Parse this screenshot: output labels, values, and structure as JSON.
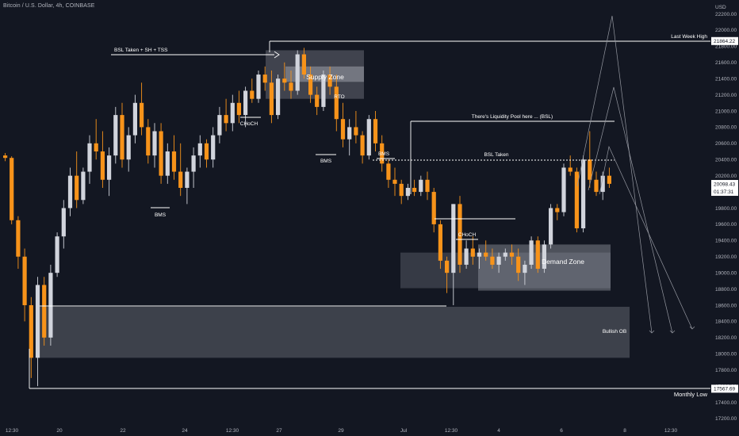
{
  "header": {
    "symbol": "Bitcoin / U.S. Dollar, 4h, COINBASE"
  },
  "chart_data": {
    "type": "candlestick",
    "currency_label": "USD",
    "ylim": [
      17200,
      22400
    ],
    "price_ticks": [
      17200,
      17400,
      17600,
      17800,
      18000,
      18200,
      18400,
      18600,
      18800,
      19000,
      19200,
      19400,
      19600,
      19800,
      20000,
      20200,
      20400,
      20600,
      20800,
      21000,
      21200,
      21400,
      21600,
      21800,
      22000,
      22200
    ],
    "time_ticks": [
      "12:30",
      "20",
      "22",
      "24",
      "12:30",
      "27",
      "29",
      "Jul",
      "12:30",
      "4",
      "6",
      "8",
      "12:30"
    ],
    "colors": {
      "up": "#d1d4dc",
      "down": "#f7931a",
      "background": "#131722",
      "annotation": "#ffffff"
    },
    "price_labels": [
      {
        "value": 21864.22,
        "text": "21864.22"
      },
      {
        "value": 20098.43,
        "text": "20098.43",
        "sub": "01:37:31"
      },
      {
        "value": 17567.69,
        "text": "17567.69"
      }
    ],
    "annotations": {
      "bsl_taken_sh_tss": "BSL Taken + SH + TSS",
      "last_week_high": "Last Week High",
      "supply_zone": "Supply Zone",
      "rto": "RTO",
      "choch_1": "CHoCH",
      "bms_1": "BMS",
      "bms_2": "BMS",
      "bms_3": "BMS",
      "liquidity_pool": "There's Liquidity Pool here ... (BSL)",
      "bsl_taken": "BSL Taken",
      "choch_2": "CHoCH",
      "demand_zone": "Demand Zone",
      "bullish_ob": "Bullish OB",
      "monthly_low": "Monthly Low"
    },
    "zones": [
      {
        "name": "supply-zone",
        "label_key": "supply_zone",
        "from": 21500,
        "to": 21750
      },
      {
        "name": "rto-zone",
        "label_key": "rto",
        "from": 21150,
        "to": 21500
      },
      {
        "name": "demand-zone",
        "label_key": "demand_zone",
        "from": 18780,
        "to": 19350
      },
      {
        "name": "bullish-ob",
        "label_key": "bullish_ob",
        "from": 17950,
        "to": 18580
      }
    ],
    "candles": [
      [
        20450,
        20480,
        20380,
        20420
      ],
      [
        20420,
        20440,
        19600,
        19650
      ],
      [
        19650,
        19700,
        19050,
        19200
      ],
      [
        19200,
        19300,
        18400,
        18600
      ],
      [
        18600,
        18700,
        17700,
        17950
      ],
      [
        17950,
        18950,
        17600,
        18850
      ],
      [
        18850,
        18950,
        18100,
        18200
      ],
      [
        18200,
        19100,
        18100,
        19000
      ],
      [
        19000,
        19500,
        18950,
        19450
      ],
      [
        19450,
        19900,
        19300,
        19800
      ],
      [
        19800,
        20300,
        19700,
        20200
      ],
      [
        20200,
        20500,
        19800,
        19900
      ],
      [
        19900,
        20300,
        19850,
        20250
      ],
      [
        20250,
        20700,
        20100,
        20600
      ],
      [
        20600,
        20900,
        20400,
        20500
      ],
      [
        20500,
        20750,
        20050,
        20150
      ],
      [
        20150,
        20550,
        19950,
        20450
      ],
      [
        20450,
        21050,
        20350,
        20950
      ],
      [
        20950,
        21100,
        20300,
        20400
      ],
      [
        20400,
        20800,
        20250,
        20700
      ],
      [
        20700,
        21200,
        20600,
        21100
      ],
      [
        21100,
        21350,
        20700,
        20800
      ],
      [
        20800,
        20900,
        20350,
        20450
      ],
      [
        20450,
        20850,
        20300,
        20750
      ],
      [
        20750,
        20850,
        20100,
        20200
      ],
      [
        20200,
        20600,
        20100,
        20500
      ],
      [
        20500,
        20700,
        20150,
        20250
      ],
      [
        20250,
        20600,
        19950,
        20050
      ],
      [
        20050,
        20300,
        19850,
        20250
      ],
      [
        20250,
        20550,
        20050,
        20450
      ],
      [
        20450,
        20700,
        20300,
        20600
      ],
      [
        20600,
        20650,
        20300,
        20400
      ],
      [
        20400,
        20800,
        20300,
        20700
      ],
      [
        20700,
        21050,
        20600,
        20950
      ],
      [
        20950,
        21150,
        20750,
        20850
      ],
      [
        20850,
        21200,
        20750,
        21100
      ],
      [
        21100,
        21250,
        20850,
        20950
      ],
      [
        20950,
        21300,
        20800,
        21250
      ],
      [
        21250,
        21400,
        21100,
        21150
      ],
      [
        21150,
        21500,
        21100,
        21450
      ],
      [
        21450,
        21550,
        21250,
        21350
      ],
      [
        21350,
        21500,
        20850,
        20950
      ],
      [
        20950,
        21450,
        20900,
        21400
      ],
      [
        21400,
        21600,
        21250,
        21350
      ],
      [
        21350,
        21500,
        21150,
        21250
      ],
      [
        21250,
        21750,
        21200,
        21700
      ],
      [
        21700,
        21780,
        21400,
        21450
      ],
      [
        21450,
        21550,
        21100,
        21200
      ],
      [
        21200,
        21300,
        20950,
        21050
      ],
      [
        21050,
        21500,
        21000,
        21450
      ],
      [
        21450,
        21550,
        21200,
        21300
      ],
      [
        21300,
        21450,
        20750,
        20900
      ],
      [
        20900,
        21100,
        20550,
        20650
      ],
      [
        20650,
        20900,
        20450,
        20800
      ],
      [
        20800,
        21000,
        20600,
        20700
      ],
      [
        20700,
        20750,
        20350,
        20450
      ],
      [
        20450,
        20950,
        20400,
        20900
      ],
      [
        20900,
        21000,
        20500,
        20600
      ],
      [
        20600,
        20700,
        20250,
        20350
      ],
      [
        20350,
        20400,
        20050,
        20150
      ],
      [
        20150,
        20300,
        19950,
        20100
      ],
      [
        20100,
        20150,
        19850,
        19950
      ],
      [
        19950,
        20100,
        19900,
        20050
      ],
      [
        20050,
        20150,
        19950,
        20000
      ],
      [
        20000,
        20200,
        19950,
        20150
      ],
      [
        20150,
        20250,
        19900,
        20000
      ],
      [
        20000,
        20050,
        19500,
        19600
      ],
      [
        19600,
        19650,
        19050,
        19150
      ],
      [
        19150,
        19200,
        18750,
        19000
      ],
      [
        19000,
        19850,
        18600,
        19850
      ],
      [
        19850,
        19950,
        19000,
        19100
      ],
      [
        19100,
        19400,
        19050,
        19300
      ],
      [
        19300,
        19450,
        19100,
        19200
      ],
      [
        19200,
        19300,
        19050,
        19250
      ],
      [
        19250,
        19400,
        19150,
        19200
      ],
      [
        19200,
        19300,
        19050,
        19100
      ],
      [
        19100,
        19250,
        19000,
        19200
      ],
      [
        19200,
        19300,
        19150,
        19250
      ],
      [
        19250,
        19350,
        19100,
        19200
      ],
      [
        19200,
        19300,
        18900,
        19000
      ],
      [
        19000,
        19150,
        18850,
        19100
      ],
      [
        19100,
        19450,
        19050,
        19400
      ],
      [
        19400,
        19450,
        19000,
        19050
      ],
      [
        19050,
        19400,
        19000,
        19350
      ],
      [
        19350,
        19850,
        19300,
        19800
      ],
      [
        19800,
        19850,
        19650,
        19750
      ],
      [
        19750,
        20350,
        19700,
        20300
      ],
      [
        20300,
        20450,
        20200,
        20250
      ],
      [
        20250,
        20300,
        19500,
        19550
      ],
      [
        19550,
        20450,
        19500,
        20400
      ],
      [
        20400,
        20750,
        20050,
        20150
      ],
      [
        20150,
        20250,
        19950,
        20000
      ],
      [
        20000,
        20250,
        19900,
        20200
      ],
      [
        20200,
        20300,
        20050,
        20100
      ]
    ],
    "x_positions": [
      4,
      9,
      14,
      19,
      24,
      29,
      34,
      39,
      44,
      49,
      54,
      59,
      64,
      69,
      74,
      79,
      84,
      89,
      94,
      99,
      104,
      109,
      114,
      119,
      124,
      129,
      134,
      139,
      144,
      149,
      154,
      159,
      164,
      169,
      174,
      179,
      184,
      189,
      194,
      199,
      204,
      209,
      214,
      219,
      224,
      229,
      234,
      239,
      244,
      249,
      254,
      259,
      264,
      269,
      274,
      279,
      284,
      289,
      294,
      299,
      304,
      309,
      314,
      319,
      324,
      329,
      334,
      339,
      344,
      349,
      354,
      359,
      364,
      369,
      374,
      379,
      384,
      389,
      394,
      399,
      404,
      409,
      414,
      419,
      424,
      429,
      434,
      439,
      444,
      449,
      454,
      459,
      464,
      469
    ]
  }
}
